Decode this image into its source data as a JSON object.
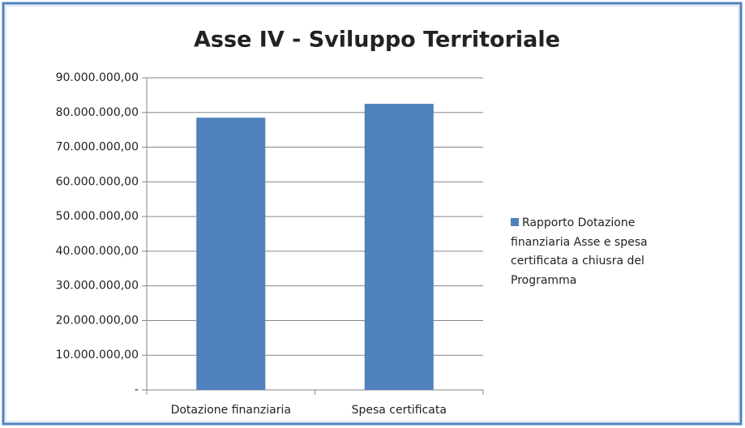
{
  "chart_data": {
    "type": "bar",
    "title": "Asse IV - Sviluppo Territoriale",
    "categories": [
      "Dotazione finanziaria",
      "Spesa certificata"
    ],
    "series": [
      {
        "name": "Rapporto Dotazione finanziaria Asse e spesa certificata a chiusra del Programma",
        "color": "#4f81bd",
        "values": [
          78500000,
          82500000
        ]
      }
    ],
    "ylim": [
      0,
      90000000
    ],
    "yticks": [
      {
        "value": 0,
        "label": "-"
      },
      {
        "value": 10000000,
        "label": "10.000.000,00"
      },
      {
        "value": 20000000,
        "label": "20.000.000,00"
      },
      {
        "value": 30000000,
        "label": "30.000.000,00"
      },
      {
        "value": 40000000,
        "label": "40.000.000,00"
      },
      {
        "value": 50000000,
        "label": "50.000.000,00"
      },
      {
        "value": 60000000,
        "label": "60.000.000,00"
      },
      {
        "value": 70000000,
        "label": "70.000.000,00"
      },
      {
        "value": 80000000,
        "label": "80.000.000,00"
      },
      {
        "value": 90000000,
        "label": "90.000.000,00"
      }
    ],
    "grid": true,
    "legend": "right"
  }
}
